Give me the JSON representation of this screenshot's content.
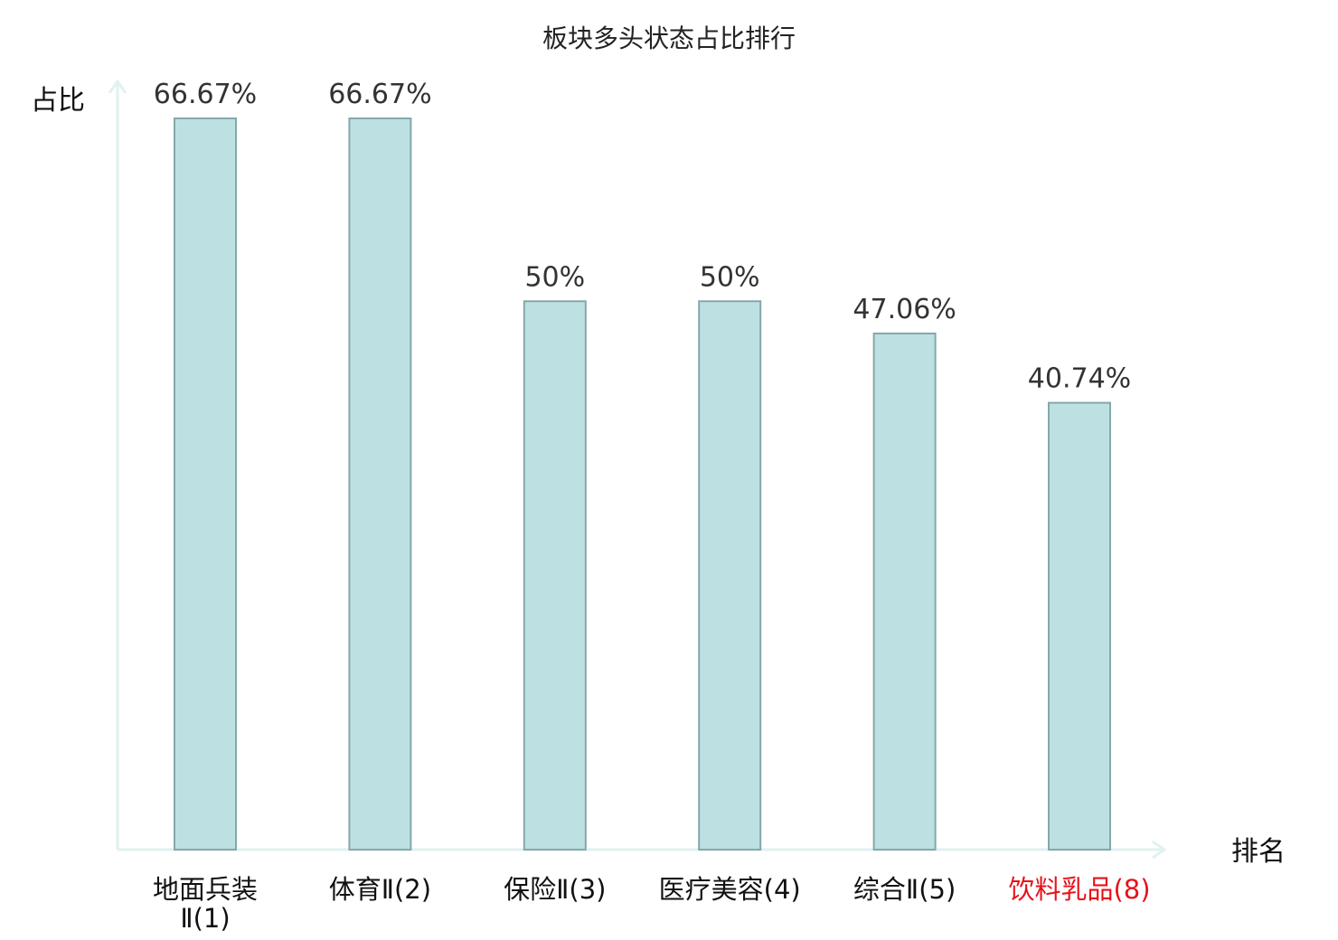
{
  "chart_data": {
    "type": "bar",
    "title": "板块多头状态占比排行",
    "ylabel": "占比",
    "xlabel": "排名",
    "ylim": [
      0,
      70
    ],
    "grid": false,
    "legend": "none",
    "categories": [
      {
        "name": "地面兵装",
        "suffix": "Ⅱ(1)",
        "wrap": true,
        "highlight": false
      },
      {
        "name": "体育",
        "suffix": "Ⅱ(2)",
        "wrap": false,
        "highlight": false
      },
      {
        "name": "保险",
        "suffix": "Ⅱ(3)",
        "wrap": false,
        "highlight": false
      },
      {
        "name": "医疗美容",
        "suffix": "(4)",
        "wrap": false,
        "highlight": false
      },
      {
        "name": "综合",
        "suffix": "Ⅱ(5)",
        "wrap": false,
        "highlight": false
      },
      {
        "name": "饮料乳品",
        "suffix": "(8)",
        "wrap": false,
        "highlight": true
      }
    ],
    "values": [
      66.67,
      66.67,
      50,
      50,
      47.06,
      40.74
    ],
    "value_labels": [
      "66.67%",
      "66.67%",
      "50%",
      "50%",
      "47.06%",
      "40.74%"
    ]
  },
  "colors": {
    "bar_fill": "#bde1e3",
    "bar_stroke": "#86a7a9",
    "axis": "#dff2ef",
    "text": "#111111",
    "value_text": "#333333",
    "highlight": "#e8111a"
  }
}
